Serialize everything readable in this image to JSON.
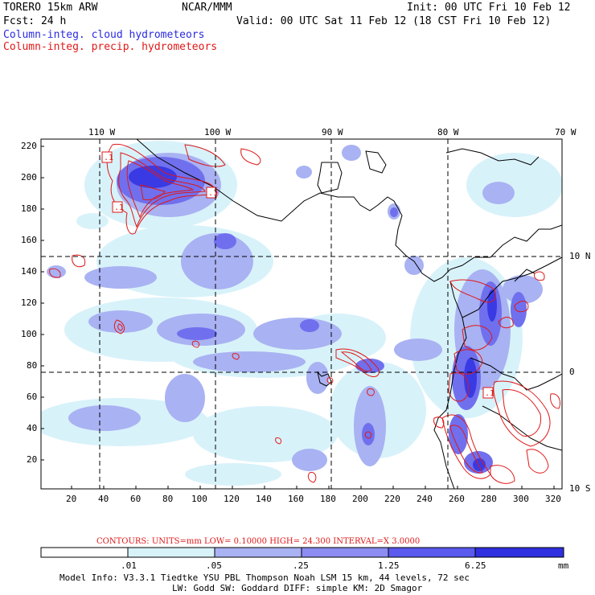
{
  "header": {
    "model": "TORERO  15km ARW",
    "org": "NCAR/MMM",
    "init": "Init: 00 UTC Fri 10 Feb 12",
    "fcst": "Fcst:   24 h",
    "valid": "Valid: 00 UTC Sat 11 Feb 12 (18 CST Fri 10 Feb 12)",
    "field1": "Column-integ. cloud hydrometeors",
    "field2": "Column-integ. precip. hydrometeors"
  },
  "colors": {
    "field1": "#2a2ae0",
    "field2": "#e01818",
    "shade1": "#d8f2fa",
    "shade2": "#a9b2f2",
    "shade3": "#8c8cf2",
    "shade4": "#5a5aee",
    "shade5": "#3030e0"
  },
  "map": {
    "lon_labels": [
      "110 W",
      "100 W",
      "90 W",
      "80 W",
      "70 W"
    ],
    "lat_labels": [
      "10 N",
      "0",
      "10 S"
    ],
    "y_ticks": [
      "220",
      "200",
      "180",
      "160",
      "140",
      "120",
      "100",
      "80",
      "60",
      "40",
      "20"
    ],
    "x_ticks": [
      "20",
      "40",
      "60",
      "80",
      "100",
      "120",
      "140",
      "160",
      "180",
      "200",
      "220",
      "240",
      "260",
      "280",
      "300",
      "320"
    ],
    "box_labels": [
      ".1",
      ".1",
      ".1",
      ".1"
    ]
  },
  "contour_info": "CONTOURS:  UNITS=mm  LOW= 0.10000      HIGH=  24.300      INTERVAL=X  3.0000",
  "legend": {
    "levels": [
      ".01",
      ".05",
      ".25",
      "1.25",
      "6.25"
    ],
    "units": "mm"
  },
  "footer": {
    "line1": "Model Info: V3.3.1   Tiedtke YSU PBL  Thompson    Noah LSM  15 km,   44 levels,   72 sec",
    "line2": "LW: Godd SW: Goddard DIFF: simple KM: 2D Smagor"
  }
}
